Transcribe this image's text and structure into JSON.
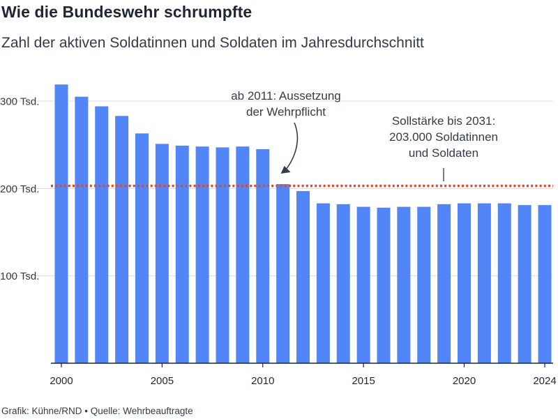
{
  "title": "Wie die Bundeswehr schrumpfte",
  "subtitle": "Zahl der aktiven Soldatinnen und Soldaten im Jahresdurchschnitt",
  "footer": "Grafik: Kühne/RND • Quelle: Wehrbeauftragte",
  "colors": {
    "bar": "#5285f5",
    "target_line": "#e4462b",
    "grid": "#dcdcdc",
    "axis": "#1e2633"
  },
  "chart_data": {
    "type": "bar",
    "title": "Wie die Bundeswehr schrumpfte",
    "subtitle": "Zahl der aktiven Soldatinnen und Soldaten im Jahresdurchschnitt",
    "categories": [
      2000,
      2001,
      2002,
      2003,
      2004,
      2005,
      2006,
      2007,
      2008,
      2009,
      2010,
      2011,
      2012,
      2013,
      2014,
      2015,
      2016,
      2017,
      2018,
      2019,
      2020,
      2021,
      2022,
      2023,
      2024
    ],
    "values": [
      319000,
      305000,
      294000,
      283000,
      263000,
      251000,
      249000,
      248000,
      247000,
      248000,
      245000,
      205000,
      197000,
      183000,
      182000,
      179000,
      178000,
      179000,
      179000,
      182000,
      183000,
      183000,
      183000,
      181000,
      181000
    ],
    "yticks": [
      {
        "value": 100000,
        "label": "100 Tsd."
      },
      {
        "value": 200000,
        "label": "200 Tsd."
      },
      {
        "value": 300000,
        "label": "300 Tsd."
      }
    ],
    "xticks": [
      {
        "value": 2000,
        "label": "2000"
      },
      {
        "value": 2005,
        "label": "2005"
      },
      {
        "value": 2010,
        "label": "2010"
      },
      {
        "value": 2015,
        "label": "2015"
      },
      {
        "value": 2020,
        "label": "2020"
      },
      {
        "value": 2024,
        "label": "2024"
      }
    ],
    "ylim": [
      0,
      320000
    ],
    "grid": true,
    "reference_line": {
      "value": 203000,
      "style": "dotted"
    },
    "annotations": [
      {
        "lines": [
          "ab 2011: Aussetzung",
          "der Wehrpflicht"
        ],
        "target_year": 2011
      },
      {
        "lines": [
          "Sollstärke bis 2031:",
          "203.000 Soldatinnen",
          "und Soldaten"
        ],
        "target_year": 2020
      }
    ]
  }
}
